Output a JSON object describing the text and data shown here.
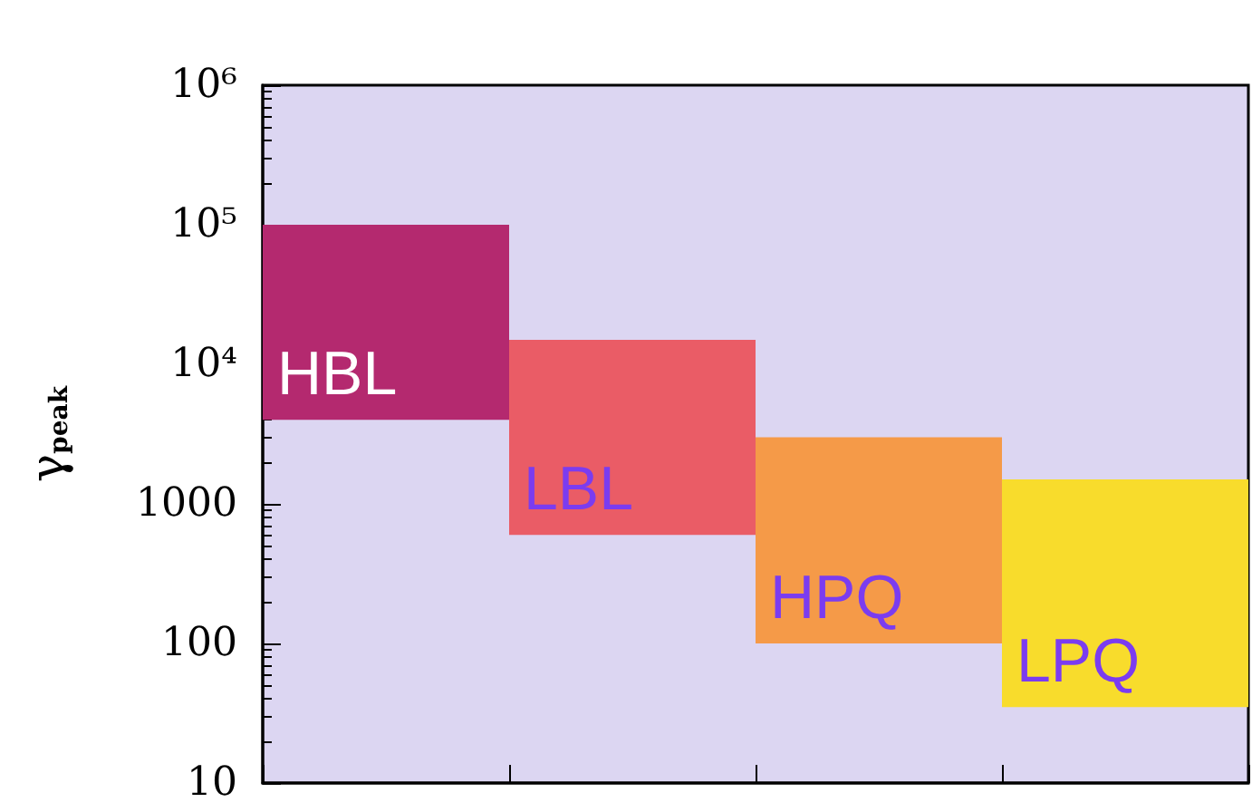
{
  "chart_data": {
    "type": "bar",
    "ylabel": "γ$_{peak}$",
    "categories": [
      "HBL",
      "LBL",
      "HPQ",
      "LPQ"
    ],
    "base": [
      4000,
      600,
      100,
      35
    ],
    "values": [
      96000,
      14400,
      2900,
      1465
    ],
    "colors": [
      "#b4296f",
      "#ea5c66",
      "#f59a48",
      "#f8dc2c"
    ],
    "log": "y",
    "ylim": [
      10,
      1000000
    ],
    "yticks": [
      10,
      100,
      1000,
      {
        "value": 10000,
        "label": "10⁴"
      },
      {
        "value": 100000,
        "label": "10⁵"
      },
      {
        "value": 1000000,
        "label": "10⁶"
      }
    ],
    "tick_labels": "y",
    "grid": false
  }
}
